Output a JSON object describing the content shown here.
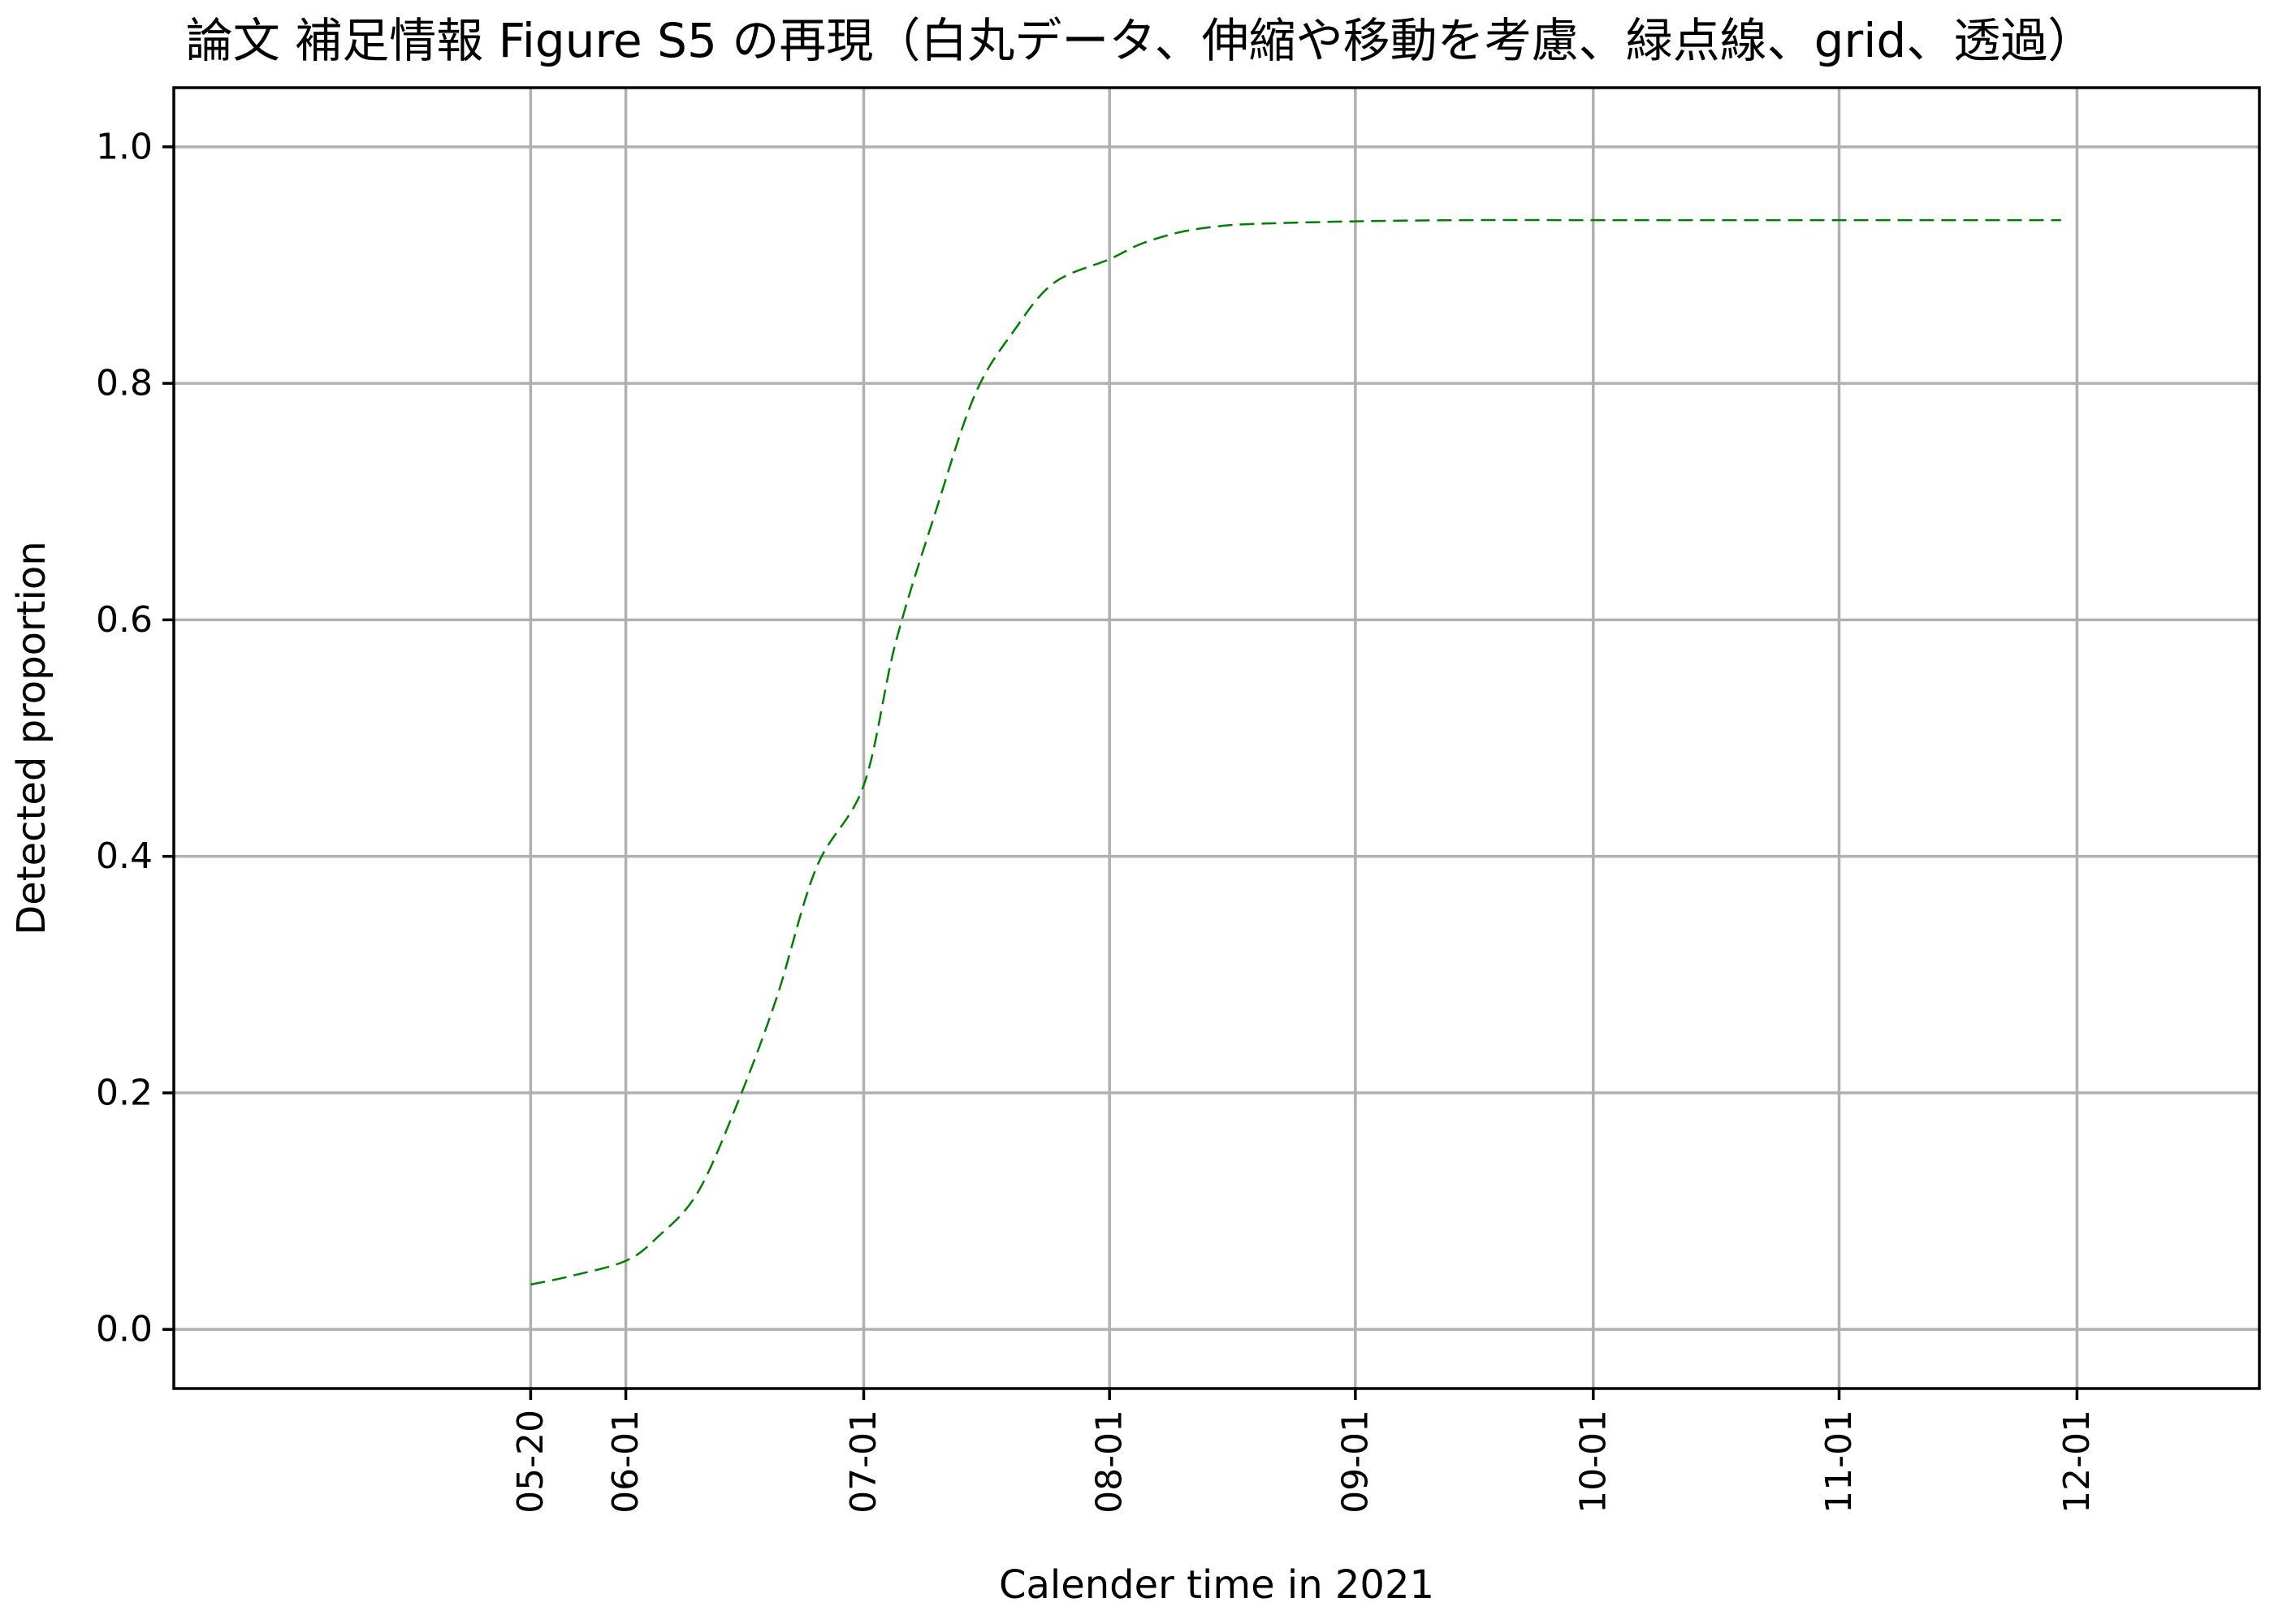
{
  "chart_data": {
    "type": "line",
    "title": "論文 補足情報 Figure S5 の再現（白丸データ、伸縮や移動を考慮、緑点線、grid、透過）",
    "xlabel": "Calender time in 2021",
    "ylabel": "Detected proportion",
    "xlim": [
      "2021-04-05",
      "2021-12-24"
    ],
    "ylim": [
      -0.05,
      1.05
    ],
    "x_ticks": [
      "2021-05-20",
      "2021-06-01",
      "2021-07-01",
      "2021-08-01",
      "2021-09-01",
      "2021-10-01",
      "2021-11-01",
      "2021-12-01"
    ],
    "x_tick_labels": [
      "05-20",
      "06-01",
      "07-01",
      "08-01",
      "09-01",
      "10-01",
      "11-01",
      "12-01"
    ],
    "y_ticks": [
      0.0,
      0.2,
      0.4,
      0.6,
      0.8,
      1.0
    ],
    "y_tick_labels": [
      "0.0",
      "0.2",
      "0.4",
      "0.6",
      "0.8",
      "1.0"
    ],
    "grid": true,
    "series": [
      {
        "color": "#008000",
        "linestyle": "dashed",
        "x": [
          "2021-05-20",
          "2021-05-25",
          "2021-06-01",
          "2021-06-05",
          "2021-06-10",
          "2021-06-15",
          "2021-06-20",
          "2021-06-25",
          "2021-07-01",
          "2021-07-05",
          "2021-07-10",
          "2021-07-15",
          "2021-07-20",
          "2021-07-25",
          "2021-08-01",
          "2021-08-05",
          "2021-08-10",
          "2021-08-15",
          "2021-08-20",
          "2021-09-01",
          "2021-09-15",
          "2021-10-01",
          "2021-10-15",
          "2021-11-01",
          "2021-11-15",
          "2021-11-29"
        ],
        "y": [
          0.038,
          0.045,
          0.058,
          0.078,
          0.115,
          0.19,
          0.28,
          0.39,
          0.46,
          0.58,
          0.69,
          0.79,
          0.845,
          0.885,
          0.905,
          0.918,
          0.928,
          0.933,
          0.935,
          0.937,
          0.938,
          0.938,
          0.938,
          0.938,
          0.938,
          0.938
        ]
      }
    ]
  }
}
